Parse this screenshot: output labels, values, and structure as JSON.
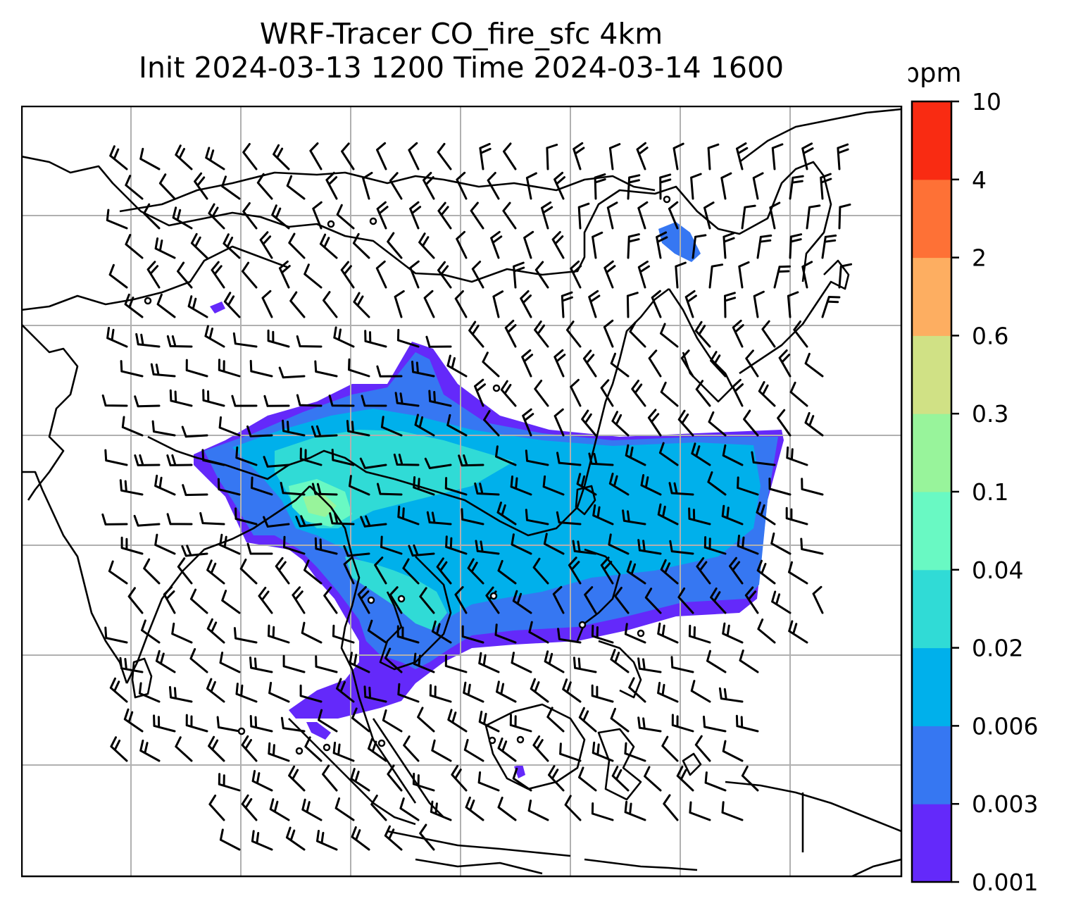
{
  "title": {
    "line1": "WRF-Tracer CO_fire_sfc 4km",
    "line2": "Init 2024-03-13 1200 Time 2024-03-14 1600"
  },
  "colorbar": {
    "unit": "ppm",
    "levels": [
      "0.001",
      "0.003",
      "0.006",
      "0.02",
      "0.04",
      "0.1",
      "0.3",
      "0.6",
      "2",
      "4",
      "10"
    ],
    "colors": [
      "#6429fa",
      "#3677f2",
      "#00b0eb",
      "#30dbd6",
      "#69f9c3",
      "#98f49b",
      "#d0e185",
      "#fdae61",
      "#fe7136",
      "#f92b12"
    ]
  },
  "map": {
    "gridlines": true,
    "overlays": [
      "coastlines",
      "wind-barbs",
      "fire-tracer-plume",
      "station-markers"
    ]
  }
}
